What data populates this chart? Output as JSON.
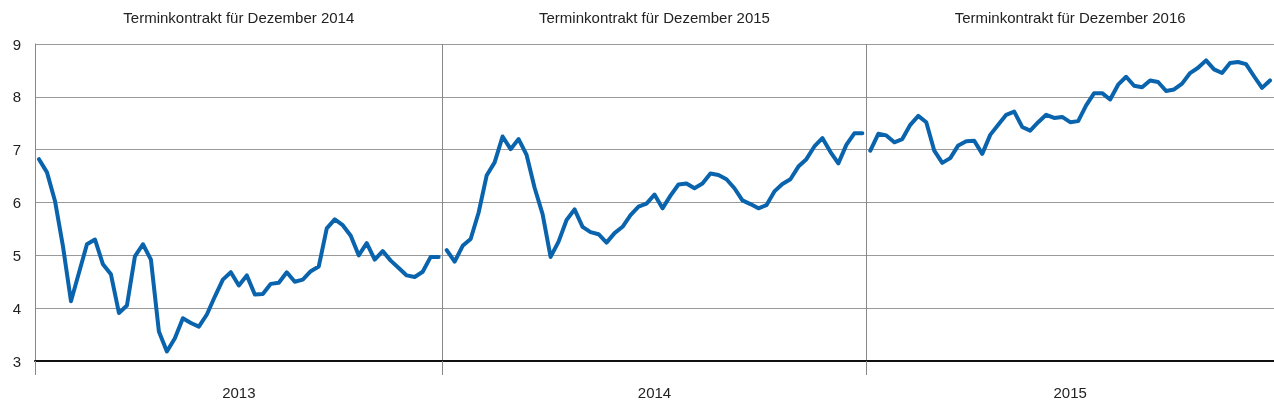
{
  "chart_data": {
    "type": "line",
    "annotations": [
      "Terminkontrakt für Dezember 2014",
      "Terminkontrakt für Dezember 2015",
      "Terminkontrakt für Dezember 2016"
    ],
    "categories": [
      null,
      null,
      null,
      null,
      null,
      null,
      null,
      null,
      null,
      null,
      null,
      null,
      null,
      null,
      null,
      null,
      null,
      null,
      null,
      null,
      null,
      null,
      null,
      null,
      null,
      "2013",
      null,
      null,
      null,
      null,
      null,
      null,
      null,
      null,
      null,
      null,
      null,
      null,
      null,
      null,
      null,
      null,
      null,
      null,
      null,
      null,
      null,
      null,
      null,
      null,
      null,
      null,
      null,
      null,
      null,
      null,
      null,
      null,
      null,
      null,
      null,
      null,
      null,
      null,
      null,
      null,
      null,
      null,
      null,
      null,
      null,
      null,
      null,
      null,
      null,
      null,
      null,
      "2014",
      null,
      null,
      null,
      null,
      null,
      null,
      null,
      null,
      null,
      null,
      null,
      null,
      null,
      null,
      null,
      null,
      null,
      null,
      null,
      null,
      null,
      null,
      null,
      null,
      null,
      null,
      null,
      null,
      null,
      null,
      null,
      null,
      null,
      null,
      null,
      null,
      null,
      null,
      null,
      null,
      null,
      null,
      null,
      null,
      null,
      null,
      null,
      null,
      null,
      null,
      null,
      "2015",
      null,
      null,
      null,
      null,
      null,
      null,
      null,
      null,
      null,
      null,
      null,
      null,
      null,
      null,
      null,
      null,
      null,
      null,
      null,
      null,
      null,
      null,
      null,
      null,
      null
    ],
    "series": [
      {
        "color": "#0a64ad",
        "values": [
          6.82,
          6.57,
          6.03,
          5.17,
          4.13,
          4.67,
          5.21,
          5.3,
          4.83,
          4.64,
          3.91,
          4.05,
          4.98,
          5.21,
          4.92,
          3.56,
          3.18,
          3.43,
          3.81,
          3.72,
          3.65,
          3.88,
          4.22,
          4.54,
          4.68,
          4.43,
          4.62,
          4.26,
          4.27,
          4.46,
          4.48,
          4.68,
          4.5,
          4.54,
          4.7,
          4.79,
          5.51,
          5.68,
          5.57,
          5.37,
          5.0,
          5.23,
          4.92,
          5.08,
          4.9,
          4.76,
          4.62,
          4.59,
          4.69,
          4.97,
          4.97,
          null,
          null,
          null,
          null,
          null,
          null,
          null,
          null,
          null,
          null,
          null,
          null,
          null,
          null,
          null,
          null,
          null,
          null,
          null,
          null,
          null,
          null,
          null,
          null,
          null,
          null,
          null,
          null,
          null,
          null,
          null,
          null,
          null,
          null,
          null,
          null,
          null,
          null,
          null,
          null,
          null,
          null,
          null,
          null,
          null,
          null,
          null,
          null,
          null,
          null,
          null,
          null,
          null,
          null,
          null,
          null,
          null,
          null,
          null,
          null,
          null,
          null,
          null,
          null,
          null,
          null,
          null,
          null,
          null,
          null,
          null,
          null,
          null,
          null,
          null,
          null,
          null,
          null,
          null,
          null,
          null,
          null,
          null,
          null,
          null,
          null,
          null,
          null,
          null,
          null,
          null,
          null,
          null,
          null,
          null,
          null,
          null,
          null,
          null,
          null,
          null,
          null,
          null,
          null
        ]
      },
      {
        "color": "#0a64ad",
        "values": [
          null,
          null,
          null,
          null,
          null,
          null,
          null,
          null,
          null,
          null,
          null,
          null,
          null,
          null,
          null,
          null,
          null,
          null,
          null,
          null,
          null,
          null,
          null,
          null,
          null,
          null,
          null,
          null,
          null,
          null,
          null,
          null,
          null,
          null,
          null,
          null,
          null,
          null,
          null,
          null,
          null,
          null,
          null,
          null,
          null,
          null,
          null,
          null,
          null,
          null,
          null,
          5.1,
          4.88,
          5.18,
          5.31,
          5.81,
          6.51,
          6.76,
          7.25,
          7.01,
          7.2,
          6.9,
          6.28,
          5.78,
          4.97,
          5.26,
          5.67,
          5.87,
          5.54,
          5.44,
          5.4,
          5.24,
          5.42,
          5.54,
          5.76,
          5.92,
          5.98,
          6.15,
          5.89,
          6.13,
          6.34,
          6.36,
          6.27,
          6.36,
          6.55,
          6.52,
          6.44,
          6.27,
          6.04,
          5.97,
          5.89,
          5.95,
          6.21,
          6.35,
          6.44,
          6.68,
          6.82,
          7.06,
          7.22,
          6.96,
          6.74,
          7.09,
          7.31,
          7.31,
          null,
          null,
          null,
          null,
          null,
          null,
          null,
          null,
          null,
          null,
          null,
          null,
          null,
          null,
          null,
          null,
          null,
          null,
          null,
          null,
          null,
          null,
          null,
          null,
          null,
          null,
          null,
          null,
          null,
          null,
          null,
          null,
          null,
          null,
          null,
          null,
          null,
          null,
          null,
          null,
          null,
          null,
          null,
          null,
          null,
          null,
          null,
          null,
          null,
          null,
          null
        ]
      },
      {
        "color": "#0a64ad",
        "values": [
          null,
          null,
          null,
          null,
          null,
          null,
          null,
          null,
          null,
          null,
          null,
          null,
          null,
          null,
          null,
          null,
          null,
          null,
          null,
          null,
          null,
          null,
          null,
          null,
          null,
          null,
          null,
          null,
          null,
          null,
          null,
          null,
          null,
          null,
          null,
          null,
          null,
          null,
          null,
          null,
          null,
          null,
          null,
          null,
          null,
          null,
          null,
          null,
          null,
          null,
          null,
          null,
          null,
          null,
          null,
          null,
          null,
          null,
          null,
          null,
          null,
          null,
          null,
          null,
          null,
          null,
          null,
          null,
          null,
          null,
          null,
          null,
          null,
          null,
          null,
          null,
          null,
          null,
          null,
          null,
          null,
          null,
          null,
          null,
          null,
          null,
          null,
          null,
          null,
          null,
          null,
          null,
          null,
          null,
          null,
          null,
          null,
          null,
          null,
          null,
          null,
          null,
          null,
          null,
          6.98,
          7.3,
          7.27,
          7.14,
          7.2,
          7.47,
          7.64,
          7.52,
          6.98,
          6.75,
          6.84,
          7.08,
          7.16,
          7.17,
          6.92,
          7.28,
          7.47,
          7.66,
          7.72,
          7.43,
          7.36,
          7.52,
          7.66,
          7.6,
          7.62,
          7.52,
          7.54,
          7.84,
          8.07,
          8.07,
          7.95,
          8.23,
          8.38,
          8.21,
          8.18,
          8.31,
          8.28,
          8.11,
          8.14,
          8.25,
          8.45,
          8.55,
          8.69,
          8.52,
          8.45,
          8.64,
          8.66,
          8.62,
          8.39,
          8.17,
          8.31
        ]
      }
    ],
    "ylim": [
      3,
      9
    ],
    "yticks": [
      3,
      4,
      5,
      6,
      7,
      8,
      9
    ],
    "grid": "y",
    "marker": "none",
    "line_style": "solid"
  }
}
